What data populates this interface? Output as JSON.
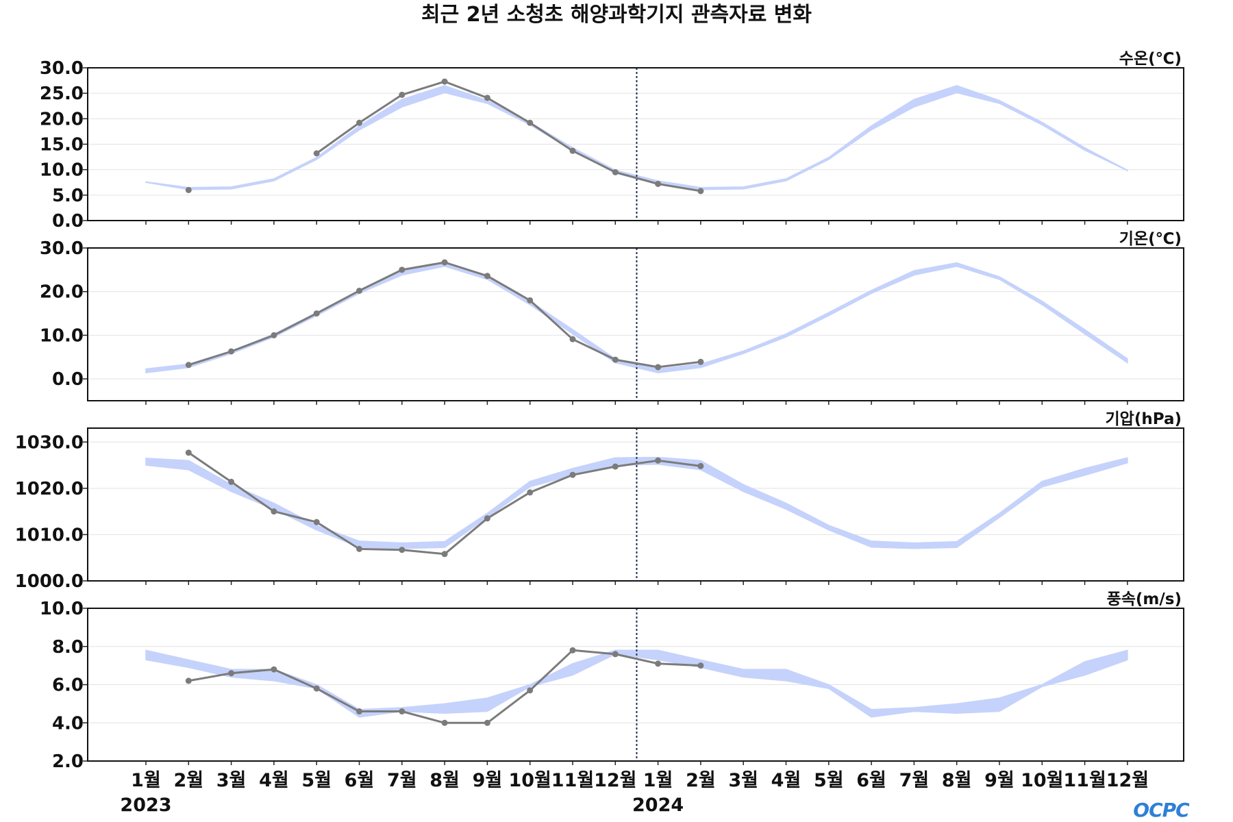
{
  "chart_data": {
    "type": "line",
    "title": "최근 2년 소청초 해양과학기지 관측자료 변화",
    "x_labels": [
      "1월",
      "2월",
      "3월",
      "4월",
      "5월",
      "6월",
      "7월",
      "8월",
      "9월",
      "10월",
      "11월",
      "12월",
      "1월",
      "2월",
      "3월",
      "4월",
      "5월",
      "6월",
      "7월",
      "8월",
      "9월",
      "10월",
      "11월",
      "12월"
    ],
    "years": [
      {
        "label": "2023",
        "index": 0
      },
      {
        "label": "2024",
        "index": 12
      }
    ],
    "divider_index": 11.5,
    "colors": {
      "band": "#c5d2fb",
      "observed": "#7b7b7b",
      "divider": "#1f2d5a"
    },
    "panels": [
      {
        "ylabel": "수온(℃)",
        "ylim": [
          0,
          30
        ],
        "yticks": [
          0,
          5,
          10,
          15,
          20,
          25,
          30
        ],
        "tick_format": "0.0",
        "band_lower": [
          7.5,
          6.1,
          6.2,
          7.8,
          12.0,
          17.8,
          22.3,
          25.1,
          23.0,
          18.8,
          13.8,
          9.3,
          7.2,
          6.1,
          6.2,
          7.8,
          12.0,
          17.8,
          22.3,
          25.1,
          23.0,
          18.8,
          13.8,
          9.8
        ],
        "band_upper": [
          7.6,
          6.5,
          6.6,
          8.2,
          12.4,
          18.6,
          23.8,
          26.5,
          23.6,
          19.3,
          14.3,
          9.9,
          7.8,
          6.5,
          6.6,
          8.2,
          12.4,
          18.6,
          23.8,
          26.5,
          23.6,
          19.3,
          14.3,
          9.9
        ],
        "observed": [
          null,
          6.0,
          null,
          null,
          13.2,
          19.2,
          24.7,
          27.3,
          24.1,
          19.2,
          13.7,
          9.5,
          7.2,
          5.8,
          null,
          null,
          null,
          null,
          null,
          null,
          null,
          null,
          null,
          null
        ]
      },
      {
        "ylabel": "기온(℃)",
        "ylim": [
          -5,
          30
        ],
        "yticks": [
          0,
          10,
          20,
          30
        ],
        "tick_format": "0.0",
        "band_lower": [
          1.4,
          2.6,
          5.8,
          9.6,
          14.5,
          19.6,
          23.8,
          25.8,
          22.8,
          17.0,
          10.3,
          3.7,
          1.4,
          2.6,
          5.8,
          9.6,
          14.5,
          19.6,
          23.8,
          25.8,
          22.8,
          17.0,
          10.3,
          3.7
        ],
        "band_upper": [
          2.3,
          3.4,
          6.4,
          10.3,
          15.2,
          20.3,
          24.8,
          26.6,
          23.4,
          17.8,
          11.3,
          4.6,
          2.3,
          3.4,
          6.4,
          10.3,
          15.2,
          20.3,
          24.8,
          26.6,
          23.4,
          17.8,
          11.3,
          4.6
        ],
        "observed": [
          null,
          3.2,
          6.3,
          10.0,
          15.0,
          20.2,
          25.0,
          26.7,
          23.6,
          18.0,
          9.1,
          4.4,
          2.7,
          3.9,
          null,
          null,
          null,
          null,
          null,
          null,
          null,
          null,
          null,
          null
        ]
      },
      {
        "ylabel": "기압(hPa)",
        "ylim": [
          1000,
          1033
        ],
        "yticks": [
          1000,
          1010,
          1020,
          1030
        ],
        "tick_format": "0.0",
        "band_lower": [
          1025.0,
          1024.0,
          1019.3,
          1015.5,
          1011.0,
          1007.3,
          1007.0,
          1007.2,
          1013.7,
          1020.3,
          1022.8,
          1025.0,
          1025.2,
          1024.0,
          1019.3,
          1015.5,
          1011.0,
          1007.3,
          1007.0,
          1007.2,
          1013.7,
          1020.3,
          1022.8,
          1025.5
        ],
        "band_upper": [
          1026.5,
          1026.0,
          1020.8,
          1016.8,
          1012.0,
          1008.6,
          1008.2,
          1008.5,
          1014.6,
          1021.5,
          1024.3,
          1026.6,
          1026.7,
          1026.0,
          1020.8,
          1016.8,
          1012.0,
          1008.6,
          1008.2,
          1008.5,
          1014.6,
          1021.5,
          1024.3,
          1026.6
        ],
        "observed": [
          null,
          1027.7,
          1021.4,
          1015.0,
          1012.7,
          1006.9,
          1006.7,
          1005.8,
          1013.5,
          1019.1,
          1022.9,
          1024.7,
          1026.0,
          1024.8,
          null,
          null,
          null,
          null,
          null,
          null,
          null,
          null,
          null,
          null
        ]
      },
      {
        "ylabel": "풍속(m/s)",
        "ylim": [
          2,
          10
        ],
        "yticks": [
          2,
          4,
          6,
          8,
          10
        ],
        "tick_format": "0.0",
        "band_lower": [
          7.3,
          6.9,
          6.4,
          6.2,
          5.8,
          4.3,
          4.6,
          4.5,
          4.6,
          5.9,
          6.5,
          7.6,
          7.3,
          6.9,
          6.4,
          6.2,
          5.8,
          4.3,
          4.6,
          4.5,
          4.6,
          5.9,
          6.5,
          7.3
        ],
        "band_upper": [
          7.8,
          7.3,
          6.8,
          6.8,
          6.0,
          4.7,
          4.8,
          5.0,
          5.3,
          6.0,
          7.1,
          7.8,
          7.8,
          7.3,
          6.8,
          6.8,
          6.0,
          4.7,
          4.8,
          5.0,
          5.3,
          6.0,
          7.2,
          7.8
        ],
        "observed": [
          null,
          6.2,
          6.6,
          6.8,
          5.8,
          4.6,
          4.6,
          4.0,
          4.0,
          5.7,
          7.8,
          7.6,
          7.1,
          7.0,
          null,
          null,
          null,
          null,
          null,
          null,
          null,
          null,
          null,
          null
        ]
      }
    ]
  },
  "logo": {
    "text": "OCPC"
  }
}
